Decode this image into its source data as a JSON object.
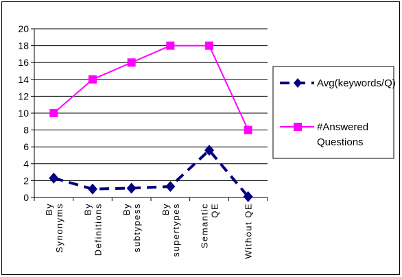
{
  "chart_data": {
    "type": "line",
    "title": "",
    "xlabel": "",
    "ylabel": "",
    "ylim": [
      0,
      20
    ],
    "yticks": [
      0,
      2,
      4,
      6,
      8,
      10,
      12,
      14,
      16,
      18,
      20
    ],
    "grid": "horizontal",
    "legend_position": "right",
    "categories": [
      [
        "By",
        "Synonyms"
      ],
      [
        "By",
        "Definitions"
      ],
      [
        "By",
        "subtypess"
      ],
      [
        "By",
        "supertypes"
      ],
      [
        "Semantic",
        "QE"
      ],
      [
        "Without QE"
      ]
    ],
    "series": [
      {
        "name": "Avg(keywords/Q)",
        "color": "#000080",
        "marker": "diamond",
        "line_style": "dashed",
        "values": [
          2.3,
          1.0,
          1.1,
          1.3,
          5.6,
          0.1
        ]
      },
      {
        "name": "#Answered Questions",
        "legend_lines": [
          "#Answered",
          "Questions"
        ],
        "color": "#FF00FF",
        "marker": "square",
        "line_style": "solid",
        "values": [
          10,
          14,
          16,
          18,
          18,
          8
        ]
      }
    ]
  }
}
